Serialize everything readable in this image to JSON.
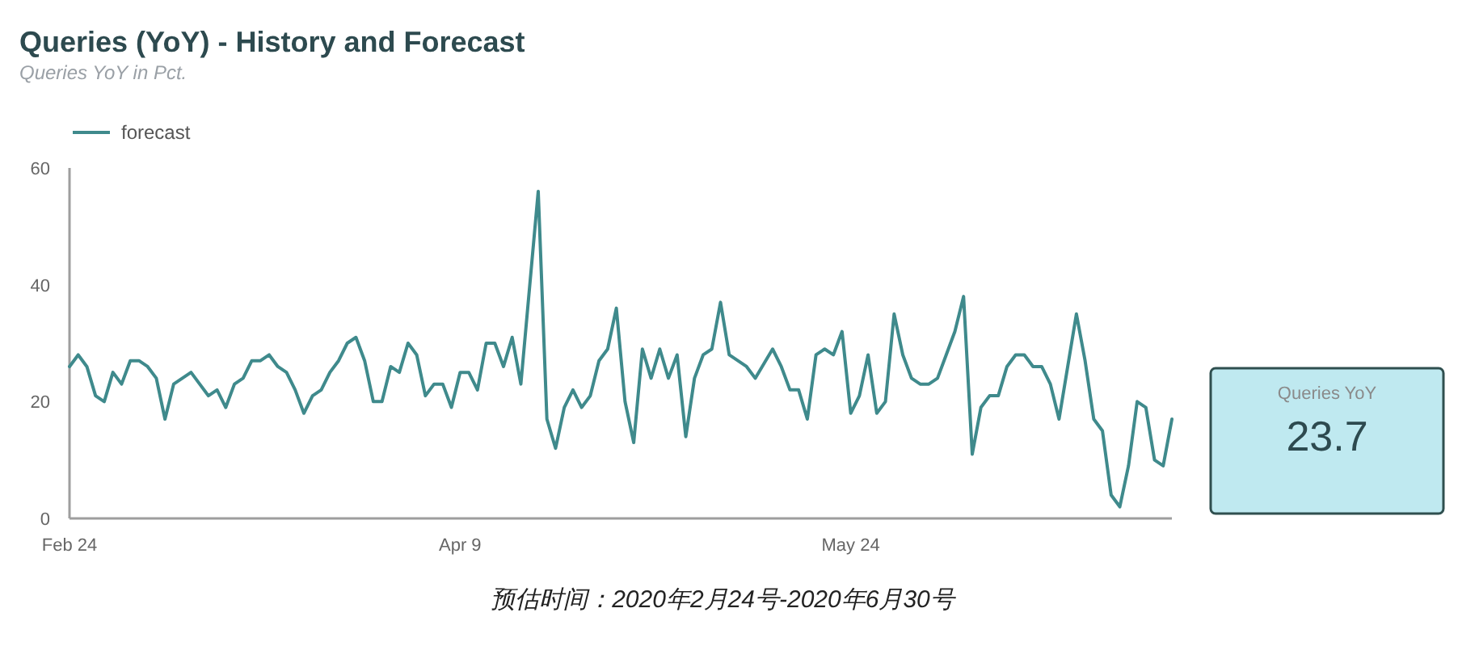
{
  "chart_data": [
    {
      "type": "line",
      "title": "Queries (YoY) - History and Forecast",
      "subtitle": "Queries YoY in Pct.",
      "annotations": [
        "预估时间：2020年2月24号-2020年6月30号"
      ],
      "xlim": [
        "2020-02-24",
        "2020-06-30"
      ],
      "xticks": [
        {
          "value": "2020-02-24",
          "label": "Feb 24"
        },
        {
          "value": "2020-04-09",
          "label": "Apr 9"
        },
        {
          "value": "2020-05-24",
          "label": "May 24"
        }
      ],
      "ylim": [
        0,
        60
      ],
      "yticks": [
        0,
        20,
        40,
        60
      ],
      "legend": "top left",
      "series": [
        {
          "name": "forecast",
          "color": "#3f8a8c",
          "x": [
            "2020-02-24",
            "2020-02-25",
            "2020-02-26",
            "2020-02-27",
            "2020-02-28",
            "2020-02-29",
            "2020-03-01",
            "2020-03-02",
            "2020-03-03",
            "2020-03-04",
            "2020-03-05",
            "2020-03-06",
            "2020-03-07",
            "2020-03-08",
            "2020-03-09",
            "2020-03-10",
            "2020-03-11",
            "2020-03-12",
            "2020-03-13",
            "2020-03-14",
            "2020-03-15",
            "2020-03-16",
            "2020-03-17",
            "2020-03-18",
            "2020-03-19",
            "2020-03-20",
            "2020-03-21",
            "2020-03-22",
            "2020-03-23",
            "2020-03-24",
            "2020-03-25",
            "2020-03-26",
            "2020-03-27",
            "2020-03-28",
            "2020-03-29",
            "2020-03-30",
            "2020-03-31",
            "2020-04-01",
            "2020-04-02",
            "2020-04-03",
            "2020-04-04",
            "2020-04-05",
            "2020-04-06",
            "2020-04-07",
            "2020-04-08",
            "2020-04-09",
            "2020-04-10",
            "2020-04-11",
            "2020-04-12",
            "2020-04-13",
            "2020-04-14",
            "2020-04-15",
            "2020-04-16",
            "2020-04-18",
            "2020-04-19",
            "2020-04-20",
            "2020-04-21",
            "2020-04-22",
            "2020-04-23",
            "2020-04-24",
            "2020-04-25",
            "2020-04-26",
            "2020-04-27",
            "2020-04-28",
            "2020-04-29",
            "2020-04-30",
            "2020-05-01",
            "2020-05-02",
            "2020-05-03",
            "2020-05-04",
            "2020-05-05",
            "2020-05-06",
            "2020-05-07",
            "2020-05-08",
            "2020-05-09",
            "2020-05-10",
            "2020-05-11",
            "2020-05-12",
            "2020-05-13",
            "2020-05-15",
            "2020-05-16",
            "2020-05-17",
            "2020-05-18",
            "2020-05-19",
            "2020-05-20",
            "2020-05-21",
            "2020-05-22",
            "2020-05-23",
            "2020-05-24",
            "2020-05-25",
            "2020-05-26",
            "2020-05-27",
            "2020-05-28",
            "2020-05-29",
            "2020-05-30",
            "2020-05-31",
            "2020-06-01",
            "2020-06-02",
            "2020-06-03",
            "2020-06-04",
            "2020-06-05",
            "2020-06-06",
            "2020-06-07",
            "2020-06-08",
            "2020-06-09",
            "2020-06-10",
            "2020-06-11",
            "2020-06-12",
            "2020-06-13",
            "2020-06-14",
            "2020-06-15",
            "2020-06-16",
            "2020-06-17",
            "2020-06-18",
            "2020-06-19",
            "2020-06-20",
            "2020-06-21",
            "2020-06-22",
            "2020-06-23",
            "2020-06-24",
            "2020-06-25",
            "2020-06-26",
            "2020-06-27",
            "2020-06-28",
            "2020-06-29",
            "2020-06-30"
          ],
          "values": [
            26,
            28,
            26,
            21,
            20,
            25,
            23,
            27,
            27,
            26,
            24,
            17,
            23,
            24,
            25,
            23,
            21,
            22,
            19,
            23,
            24,
            27,
            27,
            28,
            26,
            25,
            22,
            18,
            21,
            22,
            25,
            27,
            30,
            31,
            27,
            20,
            20,
            26,
            25,
            30,
            28,
            21,
            23,
            23,
            19,
            25,
            25,
            22,
            30,
            30,
            26,
            31,
            23,
            56,
            17,
            12,
            19,
            22,
            19,
            21,
            27,
            29,
            36,
            20,
            13,
            29,
            24,
            29,
            24,
            28,
            14,
            24,
            28,
            29,
            37,
            28,
            27,
            26,
            24,
            29,
            26,
            22,
            22,
            17,
            28,
            29,
            28,
            32,
            18,
            21,
            28,
            18,
            20,
            35,
            28,
            24,
            23,
            23,
            24,
            28,
            32,
            38,
            11,
            19,
            21,
            21,
            26,
            28,
            28,
            26,
            26,
            23,
            17,
            26,
            35,
            27,
            17,
            15,
            4,
            2,
            9,
            20,
            19,
            10,
            9,
            17
          ]
        }
      ]
    },
    {
      "type": "other",
      "title": "Queries YoY",
      "annotations": [
        "23.7"
      ],
      "color": "#bfe9f0"
    }
  ]
}
